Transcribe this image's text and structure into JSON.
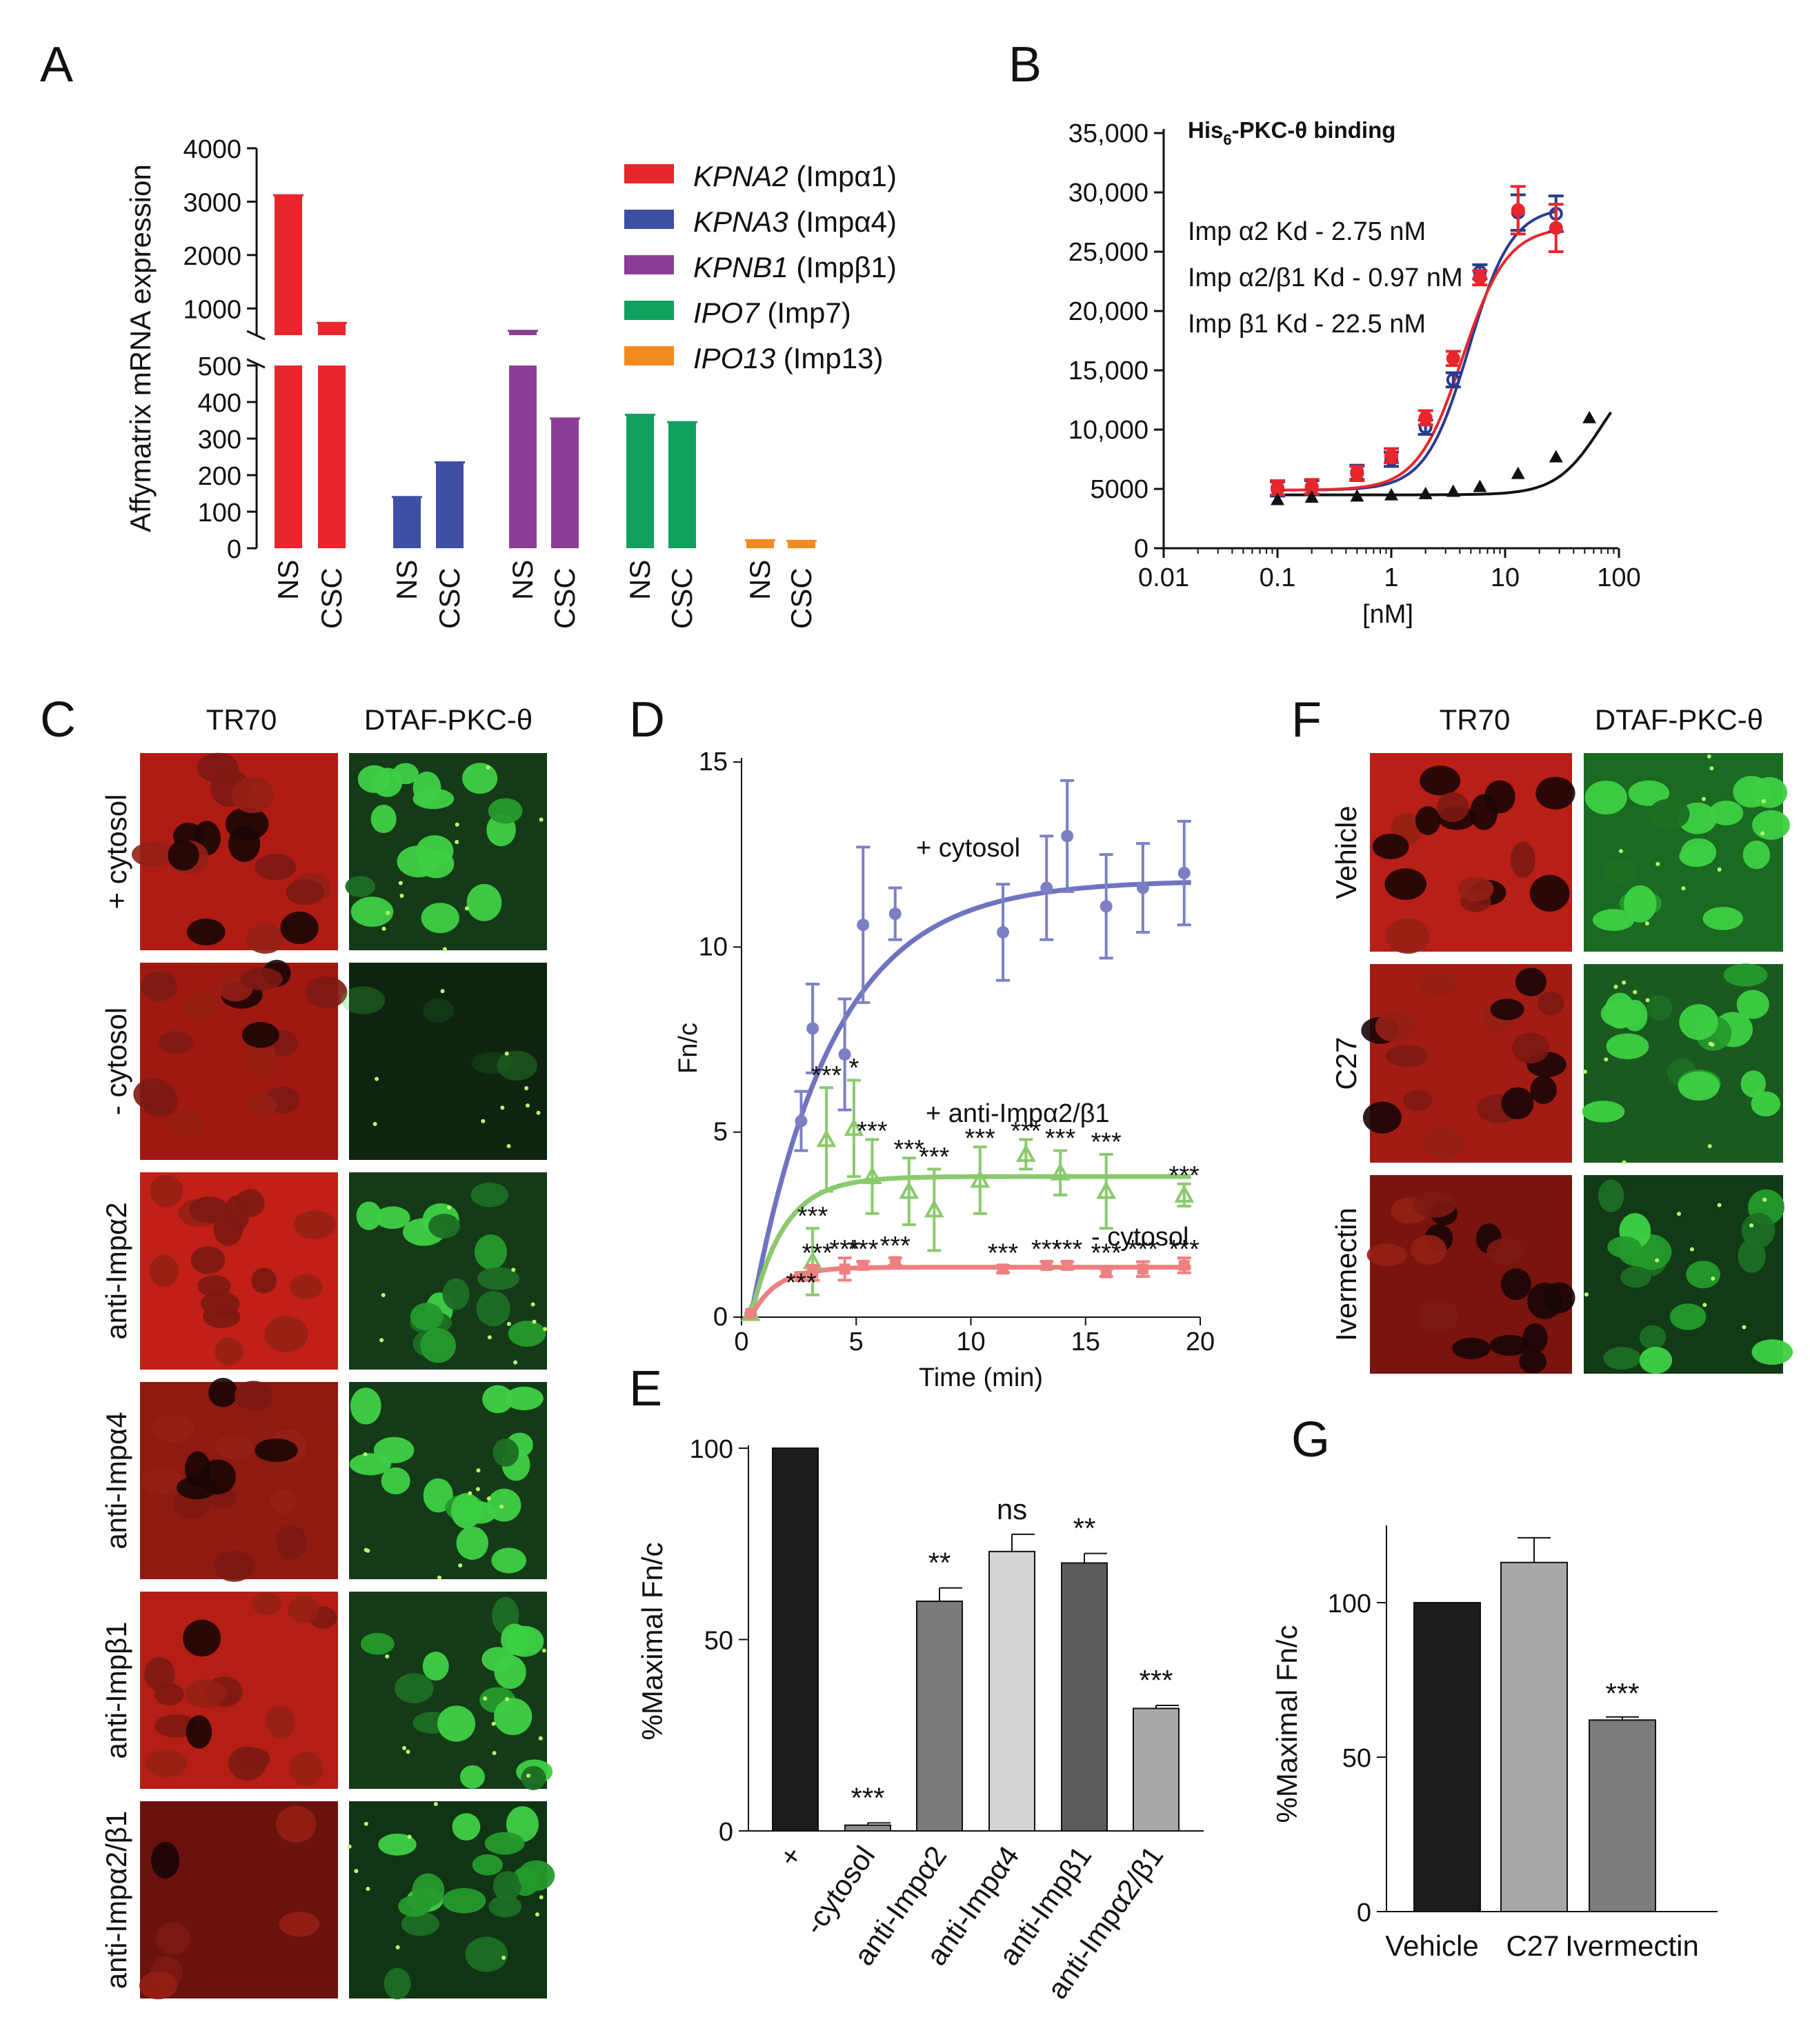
{
  "panels": {
    "A": {
      "letter": "A",
      "chart_data": {
        "type": "bar",
        "ylabel": "Affymatrix mRNA expression",
        "yticks_upper": [
          "1000",
          "2000",
          "3000",
          "4000"
        ],
        "yticks_lower": [
          "0",
          "100",
          "200",
          "300",
          "400",
          "500"
        ],
        "categories": [
          "NS",
          "CSC",
          "NS",
          "CSC",
          "NS",
          "CSC",
          "NS",
          "CSC",
          "NS",
          "CSC"
        ],
        "groups": [
          {
            "gene": "KPNA2",
            "protein": " (Impα1)",
            "color": "#e8262b",
            "values": [
              3120,
              730
            ]
          },
          {
            "gene": "KPNA3",
            "protein": " (Impα4)",
            "color": "#3f4fa6",
            "values": [
              140,
              235
            ]
          },
          {
            "gene": "KPNB1",
            "protein": " (Impβ1)",
            "color": "#8c3d96",
            "values": [
              580,
              355
            ]
          },
          {
            "gene": "IPO7",
            "protein": " (Imp7)",
            "color": "#10a060",
            "values": [
              365,
              345
            ]
          },
          {
            "gene": "IPO13",
            "protein": " (Imp13)",
            "color": "#f28a1f",
            "values": [
              22,
              20
            ]
          }
        ]
      }
    },
    "B": {
      "letter": "B",
      "chart_data": {
        "type": "scatter",
        "title_main": "His",
        "title_sub": "6",
        "title_tail": "-PKC-θ binding",
        "xlabel": "[nM]",
        "xscale": "log",
        "xticks": [
          "0.01",
          "0.1",
          "1",
          "10",
          "100"
        ],
        "yticks": [
          "0",
          "5000",
          "10,000",
          "15,000",
          "20,000",
          "25,000",
          "30,000",
          "35,000"
        ],
        "ylim": [
          0,
          35000
        ],
        "legend": [
          {
            "text": "Imp α2 Kd - 2.75 nM",
            "color": "#2b3a8f"
          },
          {
            "text": "Imp α2/β1 Kd - 0.97 nM",
            "color": "#e8262b"
          },
          {
            "text": "Imp β1 Kd - 22.5 nM",
            "color": "#111111"
          }
        ],
        "series": [
          {
            "name": "Imp α2",
            "color": "#2b3a8f",
            "x": [
              0.1,
              0.2,
              0.5,
              1,
              2,
              3.5,
              6,
              13,
              28
            ],
            "y": [
              5000,
              5100,
              6400,
              7500,
              10200,
              14200,
              23300,
              28300,
              28200
            ]
          },
          {
            "name": "Imp α2/β1",
            "color": "#e8262b",
            "x": [
              0.1,
              0.2,
              0.5,
              1,
              2,
              3.5,
              6,
              13,
              28
            ],
            "y": [
              5100,
              5200,
              6300,
              7800,
              11000,
              16000,
              22800,
              28500,
              27000
            ]
          },
          {
            "name": "Imp β1",
            "color": "#111111",
            "x": [
              0.1,
              0.2,
              0.5,
              1,
              2,
              3.5,
              6,
              13,
              28,
              55
            ],
            "y": [
              4100,
              4300,
              4400,
              4500,
              4600,
              4800,
              5200,
              6300,
              7700,
              11000
            ]
          }
        ]
      }
    },
    "C": {
      "letter": "C",
      "col_headers": [
        "TR70",
        "DTAF-PKC-θ"
      ],
      "rows": [
        "+ cytosol",
        "- cytosol",
        "anti-Impα2",
        "anti-Impα4",
        "anti-Impβ1",
        "anti-Impα2/β1"
      ]
    },
    "D": {
      "letter": "D",
      "chart_data": {
        "type": "line",
        "xlabel": "Time (min)",
        "ylabel": "Fn/c",
        "xticks": [
          "0",
          "5",
          "10",
          "15",
          "20"
        ],
        "yticks": [
          "0",
          "5",
          "10",
          "15"
        ],
        "xlim": [
          0,
          20
        ],
        "ylim": [
          0,
          15
        ],
        "series": [
          {
            "name": "+ cytosol",
            "color": "#7b80c5",
            "x": [
              0.4,
              2.6,
              3.1,
              4.5,
              5.3,
              6.7,
              11.4,
              13.3,
              14.2,
              15.9,
              17.5,
              19.3
            ],
            "y": [
              0.1,
              5.3,
              7.8,
              7.1,
              10.6,
              10.9,
              10.4,
              11.6,
              13.0,
              11.1,
              11.6,
              12.0
            ],
            "err": [
              0,
              0.8,
              1.2,
              1.5,
              2.1,
              0.7,
              1.3,
              1.4,
              1.5,
              1.4,
              1.2,
              1.4
            ]
          },
          {
            "name": "+ anti-Impα2/β1",
            "color": "#8bc96e",
            "x": [
              0.4,
              3.1,
              3.7,
              4.9,
              5.7,
              7.3,
              8.4,
              10.4,
              12.4,
              13.9,
              15.9,
              19.3
            ],
            "y": [
              0.1,
              1.5,
              4.8,
              5.1,
              3.8,
              3.4,
              2.9,
              3.7,
              4.4,
              3.9,
              3.4,
              3.3
            ],
            "err": [
              0,
              0.9,
              1.4,
              1.3,
              1.0,
              0.9,
              1.1,
              0.9,
              0.4,
              0.6,
              1.0,
              0.3
            ]
          },
          {
            "name": "- cytosol",
            "color": "#ee8080",
            "x": [
              0.4,
              2.6,
              3.1,
              4.5,
              5.3,
              6.7,
              11.4,
              13.3,
              14.2,
              15.9,
              17.5,
              19.3
            ],
            "y": [
              0.1,
              1.1,
              1.2,
              1.3,
              1.4,
              1.5,
              1.3,
              1.4,
              1.4,
              1.2,
              1.3,
              1.4
            ],
            "err": [
              0,
              0.1,
              0.2,
              0.3,
              0.1,
              0.1,
              0.1,
              0.1,
              0.1,
              0.1,
              0.2,
              0.2
            ]
          }
        ],
        "sig_green": [
          {
            "x": 3.7,
            "y": 6.3,
            "t": "***"
          },
          {
            "x": 4.9,
            "y": 6.5,
            "t": "*"
          },
          {
            "x": 5.7,
            "y": 4.8,
            "t": "***"
          },
          {
            "x": 7.3,
            "y": 4.3,
            "t": "***"
          },
          {
            "x": 8.4,
            "y": 4.1,
            "t": "***"
          },
          {
            "x": 10.4,
            "y": 4.6,
            "t": "***"
          },
          {
            "x": 12.4,
            "y": 4.8,
            "t": "***"
          },
          {
            "x": 13.9,
            "y": 4.6,
            "t": "***"
          },
          {
            "x": 15.9,
            "y": 4.5,
            "t": "***"
          },
          {
            "x": 19.3,
            "y": 3.6,
            "t": "***"
          },
          {
            "x": 3.1,
            "y": 2.5,
            "t": "***"
          }
        ],
        "sig_red": [
          {
            "x": 2.6,
            "y": 0.7,
            "t": "***"
          },
          {
            "x": 3.3,
            "y": 1.5,
            "t": "***"
          },
          {
            "x": 4.5,
            "y": 1.6,
            "t": "***"
          },
          {
            "x": 5.3,
            "y": 1.6,
            "t": "***"
          },
          {
            "x": 6.7,
            "y": 1.7,
            "t": "***"
          },
          {
            "x": 11.4,
            "y": 1.5,
            "t": "***"
          },
          {
            "x": 13.3,
            "y": 1.6,
            "t": "***"
          },
          {
            "x": 14.2,
            "y": 1.6,
            "t": "***"
          },
          {
            "x": 15.9,
            "y": 1.5,
            "t": "***"
          },
          {
            "x": 17.5,
            "y": 1.6,
            "t": "***"
          },
          {
            "x": 19.3,
            "y": 1.6,
            "t": "***"
          }
        ]
      }
    },
    "E": {
      "letter": "E",
      "chart_data": {
        "type": "bar",
        "ylabel": "%Maximal Fn/c",
        "yticks": [
          "0",
          "50",
          "100"
        ],
        "ylim": [
          0,
          100
        ],
        "categories": [
          "+",
          "-cytosol",
          "anti-Impα2",
          "anti-Impα4",
          "anti-Impβ1",
          "anti-Impα2/β1"
        ],
        "values": [
          100,
          1.5,
          60,
          73,
          70,
          32
        ],
        "errors": [
          0,
          0.6,
          3.5,
          4.5,
          2.5,
          0.8
        ],
        "colors": [
          "#1c1c1c",
          "#8e8e8e",
          "#7a7a7a",
          "#d4d4d4",
          "#5c5c5c",
          "#a9a9a9"
        ],
        "significance": [
          "",
          "***",
          "**",
          "ns",
          "**",
          "***"
        ]
      }
    },
    "F": {
      "letter": "F",
      "col_headers": [
        "TR70",
        "DTAF-PKC-θ"
      ],
      "rows": [
        "Vehicle",
        "C27",
        "Ivermectin"
      ]
    },
    "G": {
      "letter": "G",
      "chart_data": {
        "type": "bar",
        "ylabel": "%Maximal Fn/c",
        "yticks": [
          "0",
          "50",
          "100"
        ],
        "ylim": [
          0,
          125
        ],
        "categories": [
          "Vehicle",
          "C27",
          "Ivermectin"
        ],
        "values": [
          100,
          113,
          62
        ],
        "errors": [
          0,
          8,
          1
        ],
        "colors": [
          "#1c1c1c",
          "#a8a8a8",
          "#7c7c7c"
        ],
        "significance": [
          "",
          "",
          "***"
        ]
      }
    }
  }
}
